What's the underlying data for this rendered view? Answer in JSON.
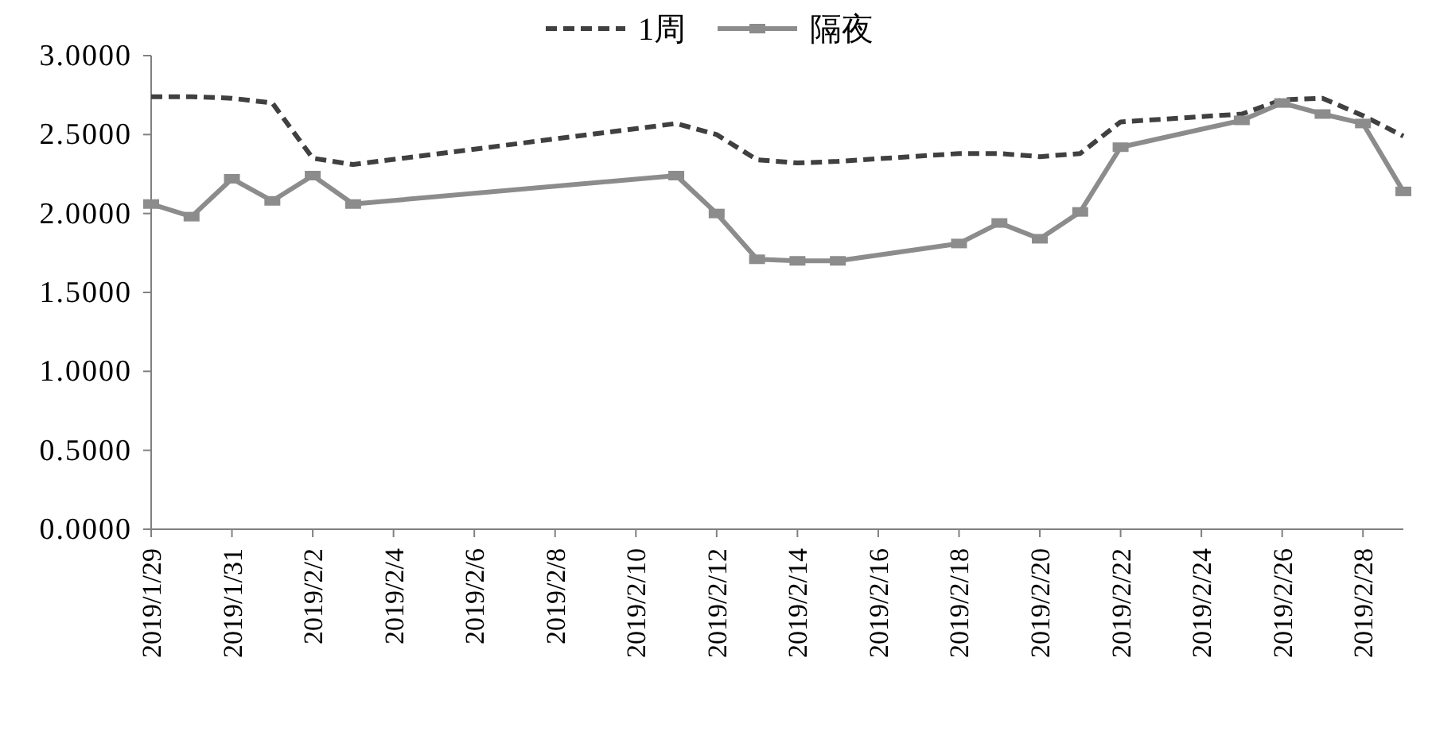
{
  "chart_data": {
    "type": "line",
    "legend": "top",
    "grid": false,
    "xlim": [
      "2019-01-29",
      "2019-03-01"
    ],
    "xticks": [
      {
        "value": "2019-01-29",
        "label": "2019/1/29"
      },
      {
        "value": "2019-01-31",
        "label": "2019/1/31"
      },
      {
        "value": "2019-02-02",
        "label": "2019/2/2"
      },
      {
        "value": "2019-02-04",
        "label": "2019/2/4"
      },
      {
        "value": "2019-02-06",
        "label": "2019/2/6"
      },
      {
        "value": "2019-02-08",
        "label": "2019/2/8"
      },
      {
        "value": "2019-02-10",
        "label": "2019/2/10"
      },
      {
        "value": "2019-02-12",
        "label": "2019/2/12"
      },
      {
        "value": "2019-02-14",
        "label": "2019/2/14"
      },
      {
        "value": "2019-02-16",
        "label": "2019/2/16"
      },
      {
        "value": "2019-02-18",
        "label": "2019/2/18"
      },
      {
        "value": "2019-02-20",
        "label": "2019/2/20"
      },
      {
        "value": "2019-02-22",
        "label": "2019/2/22"
      },
      {
        "value": "2019-02-24",
        "label": "2019/2/24"
      },
      {
        "value": "2019-02-26",
        "label": "2019/2/26"
      },
      {
        "value": "2019-02-28",
        "label": "2019/2/28"
      }
    ],
    "ylim": [
      0,
      3
    ],
    "yticks": [
      {
        "value": 0,
        "label": "0.0000"
      },
      {
        "value": 0.5,
        "label": "0.5000"
      },
      {
        "value": 1,
        "label": "1.0000"
      },
      {
        "value": 1.5,
        "label": "1.5000"
      },
      {
        "value": 2,
        "label": "2.0000"
      },
      {
        "value": 2.5,
        "label": "2.5000"
      },
      {
        "value": 3,
        "label": "3.0000"
      }
    ],
    "x": [
      "2019-01-29",
      "2019-01-30",
      "2019-01-31",
      "2019-02-01",
      "2019-02-02",
      "2019-02-03",
      "2019-02-11",
      "2019-02-12",
      "2019-02-13",
      "2019-02-14",
      "2019-02-15",
      "2019-02-18",
      "2019-02-19",
      "2019-02-20",
      "2019-02-21",
      "2019-02-22",
      "2019-02-25",
      "2019-02-26",
      "2019-02-27",
      "2019-02-28",
      "2019-03-01"
    ],
    "series": [
      {
        "name": "1周",
        "color": "#404040",
        "line_style": "dashed",
        "marker": "none",
        "values": [
          2.74,
          2.74,
          2.73,
          2.7,
          2.35,
          2.31,
          2.57,
          2.5,
          2.34,
          2.32,
          2.33,
          2.38,
          2.38,
          2.36,
          2.38,
          2.58,
          2.63,
          2.72,
          2.73,
          2.62,
          2.49
        ]
      },
      {
        "name": "隔夜",
        "color": "#8c8c8c",
        "line_style": "solid",
        "marker": "square",
        "values": [
          2.06,
          1.98,
          2.22,
          2.08,
          2.24,
          2.06,
          2.24,
          2.0,
          1.71,
          1.7,
          1.7,
          1.81,
          1.94,
          1.84,
          2.01,
          2.42,
          2.59,
          2.7,
          2.63,
          2.57,
          2.14
        ]
      }
    ]
  }
}
